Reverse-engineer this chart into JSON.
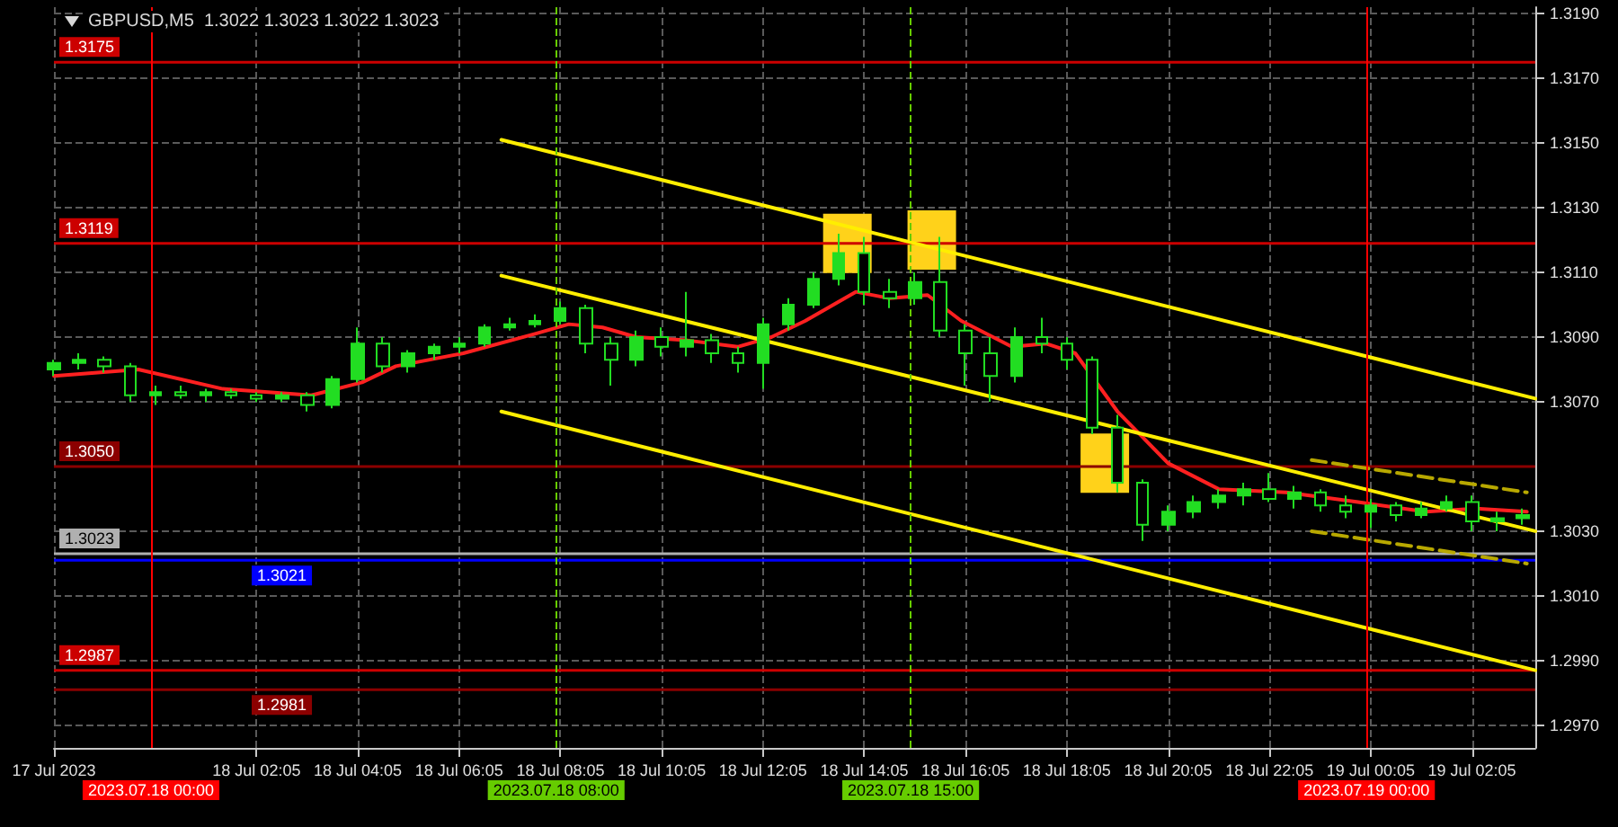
{
  "chart_data": {
    "type": "candlestick",
    "title": "GBPUSD,M5  1.3022 1.3023 1.3022 1.3023",
    "x": [
      "2023-07-17T22:05",
      "2023-07-17T22:35",
      "2023-07-17T23:05",
      "2023-07-17T23:35",
      "2023-07-18T00:05",
      "2023-07-18T00:35",
      "2023-07-18T01:05",
      "2023-07-18T01:35",
      "2023-07-18T02:05",
      "2023-07-18T02:35",
      "2023-07-18T03:05",
      "2023-07-18T03:35",
      "2023-07-18T04:05",
      "2023-07-18T04:35",
      "2023-07-18T05:05",
      "2023-07-18T05:35",
      "2023-07-18T06:05",
      "2023-07-18T06:35",
      "2023-07-18T07:05",
      "2023-07-18T07:35",
      "2023-07-18T08:05",
      "2023-07-18T08:35",
      "2023-07-18T09:05",
      "2023-07-18T09:35",
      "2023-07-18T10:05",
      "2023-07-18T10:35",
      "2023-07-18T11:05",
      "2023-07-18T11:35",
      "2023-07-18T12:05",
      "2023-07-18T12:35",
      "2023-07-18T13:05",
      "2023-07-18T13:35",
      "2023-07-18T14:05",
      "2023-07-18T14:35",
      "2023-07-18T15:05",
      "2023-07-18T15:35",
      "2023-07-18T16:05",
      "2023-07-18T16:35",
      "2023-07-18T17:05",
      "2023-07-18T17:35",
      "2023-07-18T18:05",
      "2023-07-18T18:35",
      "2023-07-18T19:05",
      "2023-07-18T19:35",
      "2023-07-18T20:05",
      "2023-07-18T20:35",
      "2023-07-18T21:05",
      "2023-07-18T21:35",
      "2023-07-18T22:05",
      "2023-07-18T22:35",
      "2023-07-18T23:05",
      "2023-07-18T23:35",
      "2023-07-19T00:05",
      "2023-07-19T00:35",
      "2023-07-19T01:05",
      "2023-07-19T01:35",
      "2023-07-19T02:05",
      "2023-07-19T02:35",
      "2023-07-19T03:05"
    ],
    "ohlc": [
      [
        1.308,
        1.3083,
        1.3078,
        1.3082
      ],
      [
        1.3082,
        1.3085,
        1.308,
        1.3083
      ],
      [
        1.3083,
        1.3084,
        1.3079,
        1.3081
      ],
      [
        1.3081,
        1.3082,
        1.307,
        1.3072
      ],
      [
        1.3072,
        1.3075,
        1.3069,
        1.3073
      ],
      [
        1.3073,
        1.3075,
        1.3071,
        1.3072
      ],
      [
        1.3072,
        1.3074,
        1.307,
        1.3073
      ],
      [
        1.3073,
        1.3074,
        1.3071,
        1.3072
      ],
      [
        1.3072,
        1.3073,
        1.307,
        1.3071
      ],
      [
        1.3071,
        1.3073,
        1.307,
        1.3072
      ],
      [
        1.3072,
        1.3073,
        1.3067,
        1.3069
      ],
      [
        1.3069,
        1.3078,
        1.3068,
        1.3077
      ],
      [
        1.3077,
        1.3093,
        1.3076,
        1.3088
      ],
      [
        1.3088,
        1.309,
        1.3079,
        1.3081
      ],
      [
        1.3081,
        1.3086,
        1.3079,
        1.3085
      ],
      [
        1.3085,
        1.3088,
        1.3083,
        1.3087
      ],
      [
        1.3087,
        1.309,
        1.3085,
        1.3088
      ],
      [
        1.3088,
        1.3094,
        1.3087,
        1.3093
      ],
      [
        1.3093,
        1.3096,
        1.3092,
        1.3094
      ],
      [
        1.3094,
        1.3097,
        1.3093,
        1.3095
      ],
      [
        1.3095,
        1.3101,
        1.3094,
        1.3099
      ],
      [
        1.3099,
        1.31,
        1.3085,
        1.3088
      ],
      [
        1.3088,
        1.309,
        1.3075,
        1.3083
      ],
      [
        1.3083,
        1.3092,
        1.3081,
        1.309
      ],
      [
        1.309,
        1.3093,
        1.3084,
        1.3087
      ],
      [
        1.3087,
        1.3104,
        1.3084,
        1.3089
      ],
      [
        1.3089,
        1.3091,
        1.3082,
        1.3085
      ],
      [
        1.3085,
        1.3087,
        1.3079,
        1.3082
      ],
      [
        1.3082,
        1.3096,
        1.3074,
        1.3094
      ],
      [
        1.3094,
        1.3102,
        1.3092,
        1.31
      ],
      [
        1.31,
        1.311,
        1.3099,
        1.3108
      ],
      [
        1.3108,
        1.3122,
        1.3106,
        1.3116
      ],
      [
        1.3116,
        1.3121,
        1.31,
        1.3104
      ],
      [
        1.3104,
        1.3108,
        1.3099,
        1.3102
      ],
      [
        1.3102,
        1.311,
        1.31,
        1.3107
      ],
      [
        1.3107,
        1.3121,
        1.309,
        1.3092
      ],
      [
        1.3092,
        1.3094,
        1.3075,
        1.3085
      ],
      [
        1.3085,
        1.309,
        1.307,
        1.3078
      ],
      [
        1.3078,
        1.3093,
        1.3076,
        1.309
      ],
      [
        1.309,
        1.3096,
        1.3085,
        1.3088
      ],
      [
        1.3088,
        1.309,
        1.308,
        1.3083
      ],
      [
        1.3083,
        1.3084,
        1.306,
        1.3062
      ],
      [
        1.3062,
        1.3066,
        1.3042,
        1.3045
      ],
      [
        1.3045,
        1.3046,
        1.3027,
        1.3032
      ],
      [
        1.3032,
        1.3038,
        1.303,
        1.3036
      ],
      [
        1.3036,
        1.3041,
        1.3034,
        1.3039
      ],
      [
        1.3039,
        1.3043,
        1.3037,
        1.3041
      ],
      [
        1.3041,
        1.3045,
        1.3038,
        1.3043
      ],
      [
        1.3043,
        1.3048,
        1.3039,
        1.304
      ],
      [
        1.304,
        1.3044,
        1.3037,
        1.3042
      ],
      [
        1.3042,
        1.3043,
        1.3036,
        1.3038
      ],
      [
        1.3038,
        1.3041,
        1.3034,
        1.3036
      ],
      [
        1.3036,
        1.304,
        1.3031,
        1.3038
      ],
      [
        1.3038,
        1.3039,
        1.3033,
        1.3035
      ],
      [
        1.3035,
        1.3039,
        1.3034,
        1.3037
      ],
      [
        1.3037,
        1.3041,
        1.3036,
        1.3039
      ],
      [
        1.3039,
        1.3041,
        1.303,
        1.3033
      ],
      [
        1.3033,
        1.3036,
        1.303,
        1.3034
      ],
      [
        1.3034,
        1.3037,
        1.3032,
        1.3035
      ]
    ],
    "color": "#22dd22",
    "series": [
      {
        "type": "line",
        "color": "#ff2020",
        "x": [
          "2023-07-17T22:05",
          "2023-07-17T23:45",
          "2023-07-18T01:25",
          "2023-07-18T03:10",
          "2023-07-18T04:10",
          "2023-07-18T04:50",
          "2023-07-18T06:10",
          "2023-07-18T07:35",
          "2023-07-18T08:15",
          "2023-07-18T08:55",
          "2023-07-18T09:35",
          "2023-07-18T10:35",
          "2023-07-18T11:35",
          "2023-07-18T12:15",
          "2023-07-18T12:55",
          "2023-07-18T13:55",
          "2023-07-18T14:35",
          "2023-07-18T15:20",
          "2023-07-18T16:00",
          "2023-07-18T17:00",
          "2023-07-18T17:40",
          "2023-07-18T18:15",
          "2023-07-18T19:05",
          "2023-07-18T20:05",
          "2023-07-18T21:05",
          "2023-07-18T22:25",
          "2023-07-18T23:50",
          "2023-07-19T01:10",
          "2023-07-19T02:10",
          "2023-07-19T03:10"
        ],
        "values": [
          1.3078,
          1.308,
          1.3074,
          1.3072,
          1.3076,
          1.3081,
          1.3085,
          1.3091,
          1.3094,
          1.3093,
          1.309,
          1.3089,
          1.3087,
          1.309,
          1.3095,
          1.3104,
          1.3102,
          1.3103,
          1.3095,
          1.3087,
          1.3088,
          1.3085,
          1.3067,
          1.3051,
          1.3043,
          1.3042,
          1.3039,
          1.3036,
          1.3037,
          1.3036
        ]
      },
      {
        "type": "line",
        "color": "#ffee00",
        "x": [
          "2023-07-18T06:55",
          "2023-07-19T03:20"
        ],
        "values": [
          1.3151,
          1.3071
        ]
      },
      {
        "type": "line",
        "color": "#ffee00",
        "x": [
          "2023-07-18T06:55",
          "2023-07-19T03:20"
        ],
        "values": [
          1.3109,
          1.303
        ]
      },
      {
        "type": "line",
        "color": "#ffee00",
        "x": [
          "2023-07-18T06:55",
          "2023-07-19T03:20"
        ],
        "values": [
          1.3067,
          1.2987
        ]
      },
      {
        "type": "line",
        "color": "#b8a800",
        "line_style": "dashed",
        "x": [
          "2023-07-18T22:55",
          "2023-07-19T03:10"
        ],
        "values": [
          1.3052,
          1.3042
        ]
      },
      {
        "type": "line",
        "color": "#b8a800",
        "line_style": "dashed",
        "x": [
          "2023-07-18T22:55",
          "2023-07-19T03:10"
        ],
        "values": [
          1.303,
          1.302
        ]
      },
      {
        "type": "scatter",
        "color": "#ffd21a",
        "marker": "square",
        "x": [
          "2023-07-18T13:45",
          "2023-07-18T15:25",
          "2023-07-18T18:50"
        ],
        "values": [
          1.3119,
          1.312,
          1.3051
        ]
      }
    ],
    "xlim": [
      "2023-07-17T22:05",
      "2023-07-19T03:20"
    ],
    "xticks": [
      {
        "value": "2023-07-17T22:05",
        "label": "17 Jul 2023"
      },
      {
        "value": "2023-07-18T02:05",
        "label": "18 Jul 02:05"
      },
      {
        "value": "2023-07-18T04:05",
        "label": "18 Jul 04:05"
      },
      {
        "value": "2023-07-18T06:05",
        "label": "18 Jul 06:05"
      },
      {
        "value": "2023-07-18T08:05",
        "label": "18 Jul 08:05"
      },
      {
        "value": "2023-07-18T10:05",
        "label": "18 Jul 10:05"
      },
      {
        "value": "2023-07-18T12:05",
        "label": "18 Jul 12:05"
      },
      {
        "value": "2023-07-18T14:05",
        "label": "18 Jul 14:05"
      },
      {
        "value": "2023-07-18T16:05",
        "label": "18 Jul 16:05"
      },
      {
        "value": "2023-07-18T18:05",
        "label": "18 Jul 18:05"
      },
      {
        "value": "2023-07-18T20:05",
        "label": "18 Jul 20:05"
      },
      {
        "value": "2023-07-18T22:05",
        "label": "18 Jul 22:05"
      },
      {
        "value": "2023-07-19T00:05",
        "label": "19 Jul 00:05"
      },
      {
        "value": "2023-07-19T02:05",
        "label": "19 Jul 02:05"
      }
    ],
    "ylim": [
      1.2963,
      1.3192
    ],
    "yticks": [
      {
        "value": 1.297,
        "label": "1.2970"
      },
      {
        "value": 1.299,
        "label": "1.2990"
      },
      {
        "value": 1.301,
        "label": "1.3010"
      },
      {
        "value": 1.303,
        "label": "1.3030"
      },
      {
        "value": 1.307,
        "label": "1.3070"
      },
      {
        "value": 1.309,
        "label": "1.3090"
      },
      {
        "value": 1.311,
        "label": "1.3110"
      },
      {
        "value": 1.313,
        "label": "1.3130"
      },
      {
        "value": 1.315,
        "label": "1.3150"
      },
      {
        "value": 1.317,
        "label": "1.3170"
      },
      {
        "value": 1.319,
        "label": "1.3190"
      }
    ],
    "ref_lines": [
      {
        "axis": "x",
        "value": "2023-07-18T00:00",
        "label": "2023.07.18 00:00",
        "color": "#ff0000",
        "line_style": "solid"
      },
      {
        "axis": "x",
        "value": "2023-07-18T08:00",
        "label": "2023.07.18 08:00",
        "color": "#66cc00",
        "line_style": "dashed"
      },
      {
        "axis": "x",
        "value": "2023-07-18T15:00",
        "label": "2023.07.18 15:00",
        "color": "#66cc00",
        "line_style": "dashed"
      },
      {
        "axis": "x",
        "value": "2023-07-19T00:00",
        "label": "2023.07.19 00:00",
        "color": "#ff0000",
        "line_style": "solid"
      },
      {
        "axis": "y",
        "value": 1.3175,
        "label": "1.3175",
        "color": "#cc0000",
        "line_style": "solid"
      },
      {
        "axis": "y",
        "value": 1.3119,
        "label": "1.3119",
        "color": "#cc0000",
        "line_style": "solid"
      },
      {
        "axis": "y",
        "value": 1.305,
        "label": "1.3050",
        "color": "#8b0000",
        "line_style": "solid"
      },
      {
        "axis": "y",
        "value": 1.3023,
        "label": "1.3023",
        "color": "#b0b0b0",
        "line_style": "solid"
      },
      {
        "axis": "y",
        "value": 1.3021,
        "label": "1.3021",
        "color": "#0000ff",
        "line_style": "solid"
      },
      {
        "axis": "y",
        "value": 1.2987,
        "label": "1.2987",
        "color": "#cc0000",
        "line_style": "solid"
      },
      {
        "axis": "y",
        "value": 1.2981,
        "label": "1.2981",
        "color": "#8b0000",
        "line_style": "solid"
      }
    ],
    "grid": true,
    "marker": "none",
    "line_style": "solid"
  }
}
